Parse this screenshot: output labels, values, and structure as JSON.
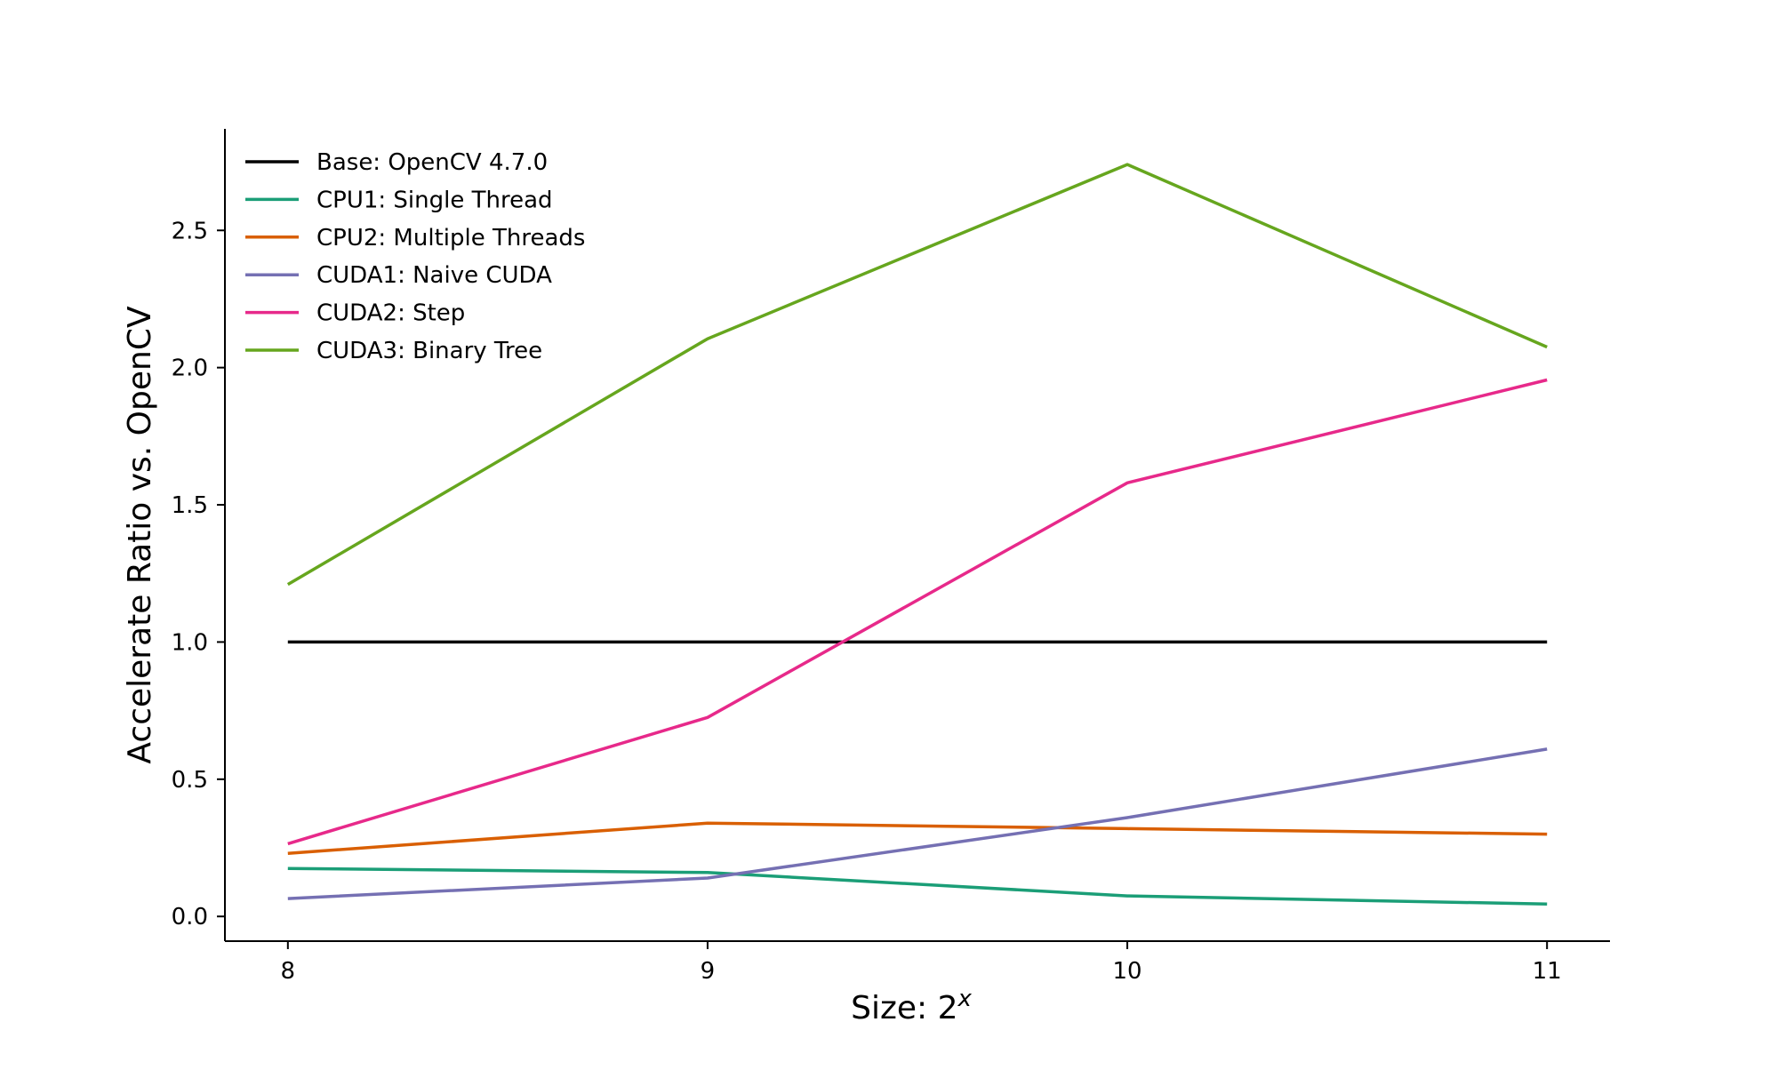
{
  "chart_data": {
    "type": "line",
    "title": "",
    "xlabel": "Size: 2",
    "xlabel_superscript": "x",
    "ylabel": "Accelerate Ratio vs. OpenCV",
    "x": [
      8,
      9,
      10,
      11
    ],
    "x_ticks": [
      "8",
      "9",
      "10",
      "11"
    ],
    "y_ticks": [
      "0.0",
      "0.5",
      "1.0",
      "1.5",
      "2.0",
      "2.5"
    ],
    "xlim": [
      7.85,
      11.15
    ],
    "ylim": [
      -0.09,
      2.87
    ],
    "grid": false,
    "legend_position": "top-left",
    "series": [
      {
        "name": "Base: OpenCV 4.7.0",
        "color": "#000000",
        "values": [
          1.0,
          1.0,
          1.0,
          1.0
        ]
      },
      {
        "name": "CPU1: Single Thread",
        "color": "#1b9e77",
        "values": [
          0.175,
          0.16,
          0.075,
          0.045
        ]
      },
      {
        "name": "CPU2: Multiple Threads",
        "color": "#d95f02",
        "values": [
          0.23,
          0.34,
          0.32,
          0.3
        ]
      },
      {
        "name": "CUDA1: Naive CUDA",
        "color": "#7570b3",
        "values": [
          0.065,
          0.14,
          0.36,
          0.61
        ]
      },
      {
        "name": "CUDA2: Step",
        "color": "#e7298a",
        "values": [
          0.265,
          0.725,
          1.58,
          1.955
        ]
      },
      {
        "name": "CUDA3: Binary Tree",
        "color": "#66a61e",
        "values": [
          1.21,
          2.105,
          2.74,
          2.075
        ]
      }
    ]
  }
}
